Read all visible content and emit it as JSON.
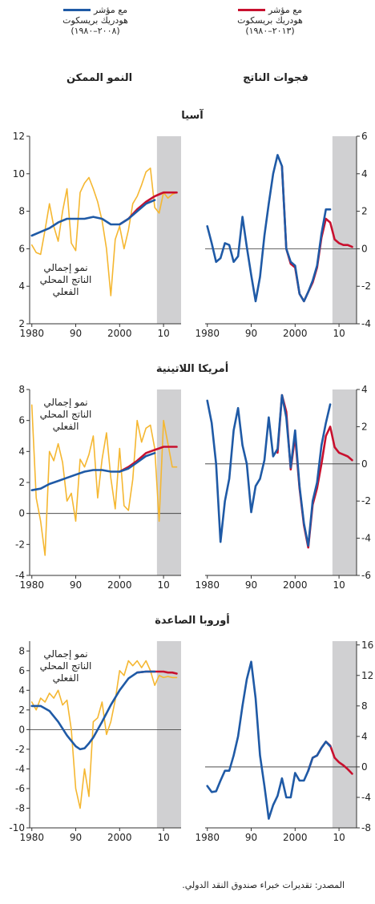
{
  "legend": {
    "left": {
      "line1": "مع مؤشر",
      "line2": "هودريك بريسكوت",
      "line3": "(٢٠٠٨–١٩٨٠)",
      "color": "#1f5aa6"
    },
    "right": {
      "line1": "مع مؤشر",
      "line2": "هودريك بريسكوت",
      "line3": "(٢٠١٣–١٩٨٠)",
      "color": "#c8102e"
    }
  },
  "column_titles": {
    "left": "النمو الممكن",
    "right": "فجوات الناتج"
  },
  "source": "المصدر: تقديرات خبراء صندوق النقد الدولي.",
  "colors": {
    "actual": "#f5b731",
    "hp2008": "#1f5aa6",
    "hp2013": "#c8102e",
    "shade": "#d0d0d2"
  },
  "chart_data": [
    {
      "type": "line",
      "region": "آسيا",
      "panel": "left",
      "x_ticks": [
        "1980",
        "90",
        "2000",
        "10"
      ],
      "y_ticks": [
        2,
        4,
        6,
        8,
        10,
        12
      ],
      "ylim": [
        2,
        12
      ],
      "xlim": [
        1979.5,
        2014
      ],
      "annotation": [
        "نمو إجمالي",
        "الناتج المحلي",
        "الفعلي"
      ],
      "shaded_from": 2008.5,
      "series": [
        {
          "key": "actual",
          "x": [
            1980,
            1981,
            1982,
            1983,
            1984,
            1985,
            1986,
            1987,
            1988,
            1989,
            1990,
            1991,
            1992,
            1993,
            1994,
            1995,
            1996,
            1997,
            1998,
            1999,
            2000,
            2001,
            2002,
            2003,
            2004,
            2005,
            2006,
            2007,
            2008,
            2009,
            2010,
            2011,
            2012,
            2013
          ],
          "values": [
            6.2,
            5.8,
            5.7,
            7.0,
            8.4,
            7.2,
            6.4,
            8.0,
            9.2,
            6.3,
            5.9,
            9.0,
            9.5,
            9.8,
            9.2,
            8.5,
            7.5,
            6.0,
            3.5,
            6.5,
            7.2,
            6.0,
            7.0,
            8.4,
            8.8,
            9.4,
            10.1,
            10.3,
            8.2,
            7.9,
            9.0,
            8.7,
            8.9,
            9.0
          ]
        },
        {
          "key": "hp2008",
          "x": [
            1980,
            1982,
            1984,
            1986,
            1988,
            1990,
            1992,
            1994,
            1996,
            1998,
            2000,
            2002,
            2004,
            2006,
            2008
          ],
          "values": [
            6.7,
            6.9,
            7.1,
            7.4,
            7.6,
            7.6,
            7.6,
            7.7,
            7.6,
            7.3,
            7.3,
            7.6,
            8.0,
            8.4,
            8.6
          ]
        },
        {
          "key": "hp2013",
          "x": [
            2000,
            2002,
            2004,
            2006,
            2008,
            2009,
            2010,
            2011,
            2012,
            2013
          ],
          "values": [
            7.3,
            7.6,
            8.1,
            8.5,
            8.8,
            8.9,
            9.0,
            9.0,
            9.0,
            9.0
          ]
        }
      ]
    },
    {
      "type": "line",
      "region": "آسيا",
      "panel": "right",
      "x_ticks": [
        "1980",
        "90",
        "2000",
        "10"
      ],
      "y_ticks": [
        -4,
        -2,
        0,
        2,
        4,
        6
      ],
      "ylim": [
        -4,
        6
      ],
      "xlim": [
        1979.5,
        2014
      ],
      "zero_line": true,
      "shaded_from": 2008.5,
      "series": [
        {
          "key": "hp2008",
          "x": [
            1980,
            1981,
            1982,
            1983,
            1984,
            1985,
            1986,
            1987,
            1988,
            1989,
            1990,
            1991,
            1992,
            1993,
            1994,
            1995,
            1996,
            1997,
            1998,
            1999,
            2000,
            2001,
            2002,
            2003,
            2004,
            2005,
            2006,
            2007,
            2008
          ],
          "values": [
            1.2,
            0.3,
            -0.7,
            -0.5,
            0.3,
            0.2,
            -0.7,
            -0.4,
            1.7,
            0.1,
            -1.4,
            -2.8,
            -1.5,
            0.7,
            2.4,
            4.0,
            5.0,
            4.4,
            0.0,
            -0.7,
            -0.9,
            -2.4,
            -2.8,
            -2.3,
            -1.7,
            -0.9,
            0.8,
            2.1,
            2.1
          ]
        },
        {
          "key": "hp2013",
          "x": [
            1997,
            1998,
            1999,
            2000,
            2001,
            2002,
            2003,
            2004,
            2005,
            2006,
            2007,
            2008,
            2009,
            2010,
            2011,
            2012,
            2013
          ],
          "values": [
            4.4,
            0.0,
            -0.8,
            -1.0,
            -2.4,
            -2.8,
            -2.3,
            -1.8,
            -1.0,
            0.6,
            1.6,
            1.4,
            0.5,
            0.3,
            0.2,
            0.2,
            0.1
          ]
        }
      ]
    },
    {
      "type": "line",
      "region": "أمريكا اللاتينية",
      "panel": "left",
      "x_ticks": [
        "1980",
        "90",
        "2000",
        "10"
      ],
      "y_ticks": [
        -4,
        -2,
        0,
        2,
        4,
        6,
        8
      ],
      "ylim": [
        -4,
        8
      ],
      "xlim": [
        1979.5,
        2014
      ],
      "zero_line": true,
      "annotation": [
        "نمو إجمالي",
        "الناتج المحلي",
        "الفعلي"
      ],
      "shaded_from": 2008.5,
      "series": [
        {
          "key": "actual",
          "x": [
            1980,
            1981,
            1982,
            1983,
            1984,
            1985,
            1986,
            1987,
            1988,
            1989,
            1990,
            1991,
            1992,
            1993,
            1994,
            1995,
            1996,
            1997,
            1998,
            1999,
            2000,
            2001,
            2002,
            2003,
            2004,
            2005,
            2006,
            2007,
            2008,
            2009,
            2010,
            2011,
            2012,
            2013
          ],
          "values": [
            7.0,
            1.0,
            -0.5,
            -2.7,
            4.0,
            3.4,
            4.5,
            3.3,
            0.8,
            1.3,
            -0.5,
            3.5,
            3.0,
            3.8,
            5.0,
            1.0,
            3.5,
            5.2,
            2.3,
            0.3,
            4.2,
            0.5,
            0.2,
            2.2,
            6.0,
            4.6,
            5.5,
            5.7,
            4.2,
            -0.5,
            6.0,
            4.5,
            3.0,
            3.0
          ]
        },
        {
          "key": "hp2008",
          "x": [
            1980,
            1982,
            1984,
            1986,
            1988,
            1990,
            1992,
            1994,
            1996,
            1998,
            2000,
            2002,
            2004,
            2006,
            2008
          ],
          "values": [
            1.5,
            1.6,
            1.9,
            2.1,
            2.3,
            2.5,
            2.7,
            2.8,
            2.8,
            2.7,
            2.7,
            2.9,
            3.3,
            3.7,
            3.9
          ]
        },
        {
          "key": "hp2013",
          "x": [
            2000,
            2002,
            2004,
            2006,
            2008,
            2009,
            2010,
            2011,
            2012,
            2013
          ],
          "values": [
            2.7,
            3.0,
            3.4,
            3.9,
            4.1,
            4.2,
            4.3,
            4.3,
            4.3,
            4.3
          ]
        }
      ]
    },
    {
      "type": "line",
      "region": "أمريكا اللاتينية",
      "panel": "right",
      "x_ticks": [
        "1980",
        "90",
        "2000",
        "10"
      ],
      "y_ticks": [
        -6,
        -4,
        -2,
        0,
        2,
        4
      ],
      "ylim": [
        -6,
        4
      ],
      "xlim": [
        1979.5,
        2014
      ],
      "zero_line": true,
      "shaded_from": 2008.5,
      "series": [
        {
          "key": "hp2008",
          "x": [
            1980,
            1981,
            1982,
            1983,
            1984,
            1985,
            1986,
            1987,
            1988,
            1989,
            1990,
            1991,
            1992,
            1993,
            1994,
            1995,
            1996,
            1997,
            1998,
            1999,
            2000,
            2001,
            2002,
            2003,
            2004,
            2005,
            2006,
            2007,
            2008
          ],
          "values": [
            3.4,
            2.2,
            0.0,
            -4.2,
            -2.0,
            -0.8,
            1.8,
            3.0,
            1.0,
            0.0,
            -2.6,
            -1.2,
            -0.8,
            0.2,
            2.5,
            0.4,
            0.8,
            3.7,
            2.5,
            -0.2,
            1.8,
            -1.2,
            -3.2,
            -4.4,
            -2.0,
            -1.0,
            1.0,
            2.2,
            3.2
          ]
        },
        {
          "key": "hp2013",
          "x": [
            1996,
            1997,
            1998,
            1999,
            2000,
            2001,
            2002,
            2003,
            2004,
            2005,
            2006,
            2007,
            2008,
            2009,
            2010,
            2011,
            2012,
            2013
          ],
          "values": [
            0.6,
            3.7,
            2.8,
            -0.3,
            1.5,
            -1.3,
            -3.3,
            -4.5,
            -2.2,
            -1.3,
            0.0,
            1.5,
            2.0,
            0.9,
            0.6,
            0.5,
            0.4,
            0.2
          ]
        }
      ]
    },
    {
      "type": "line",
      "region": "أوروبا الصاعدة",
      "panel": "left",
      "x_ticks": [
        "1980",
        "90",
        "2000",
        "10"
      ],
      "y_ticks": [
        -10,
        -8,
        -6,
        -4,
        -2,
        0,
        2,
        4,
        6,
        8
      ],
      "ylim": [
        -10,
        9
      ],
      "xlim": [
        1979.5,
        2014
      ],
      "zero_line": true,
      "annotation": [
        "نمو إجمالي",
        "الناتج المحلي",
        "الفعلي"
      ],
      "shaded_from": 2008.5,
      "series": [
        {
          "key": "actual",
          "x": [
            1980,
            1981,
            1982,
            1983,
            1984,
            1985,
            1986,
            1987,
            1988,
            1989,
            1990,
            1991,
            1992,
            1993,
            1994,
            1995,
            1996,
            1997,
            1998,
            1999,
            2000,
            2001,
            2002,
            2003,
            2004,
            2005,
            2006,
            2007,
            2008,
            2009,
            2010,
            2011,
            2012,
            2013
          ],
          "values": [
            2.8,
            2.0,
            3.2,
            2.8,
            3.7,
            3.2,
            4.0,
            2.5,
            3.0,
            0.0,
            -6.0,
            -8.0,
            -4.0,
            -6.8,
            0.8,
            1.2,
            2.8,
            -0.5,
            0.8,
            3.0,
            6.0,
            5.5,
            7.0,
            6.5,
            7.0,
            6.3,
            7.0,
            6.0,
            4.5,
            5.5,
            5.3,
            5.4,
            5.3,
            5.3
          ]
        },
        {
          "key": "hp2008",
          "x": [
            1980,
            1982,
            1984,
            1986,
            1988,
            1990,
            1991,
            1992,
            1993,
            1994,
            1996,
            1998,
            2000,
            2002,
            2004,
            2006,
            2008
          ],
          "values": [
            2.4,
            2.4,
            1.9,
            0.8,
            -0.6,
            -1.7,
            -2.0,
            -1.9,
            -1.4,
            -0.8,
            0.8,
            2.5,
            4.0,
            5.2,
            5.8,
            5.9,
            5.9
          ]
        },
        {
          "key": "hp2013",
          "x": [
            2004,
            2006,
            2008,
            2009,
            2010,
            2011,
            2012,
            2013
          ],
          "values": [
            5.8,
            5.9,
            5.9,
            5.9,
            5.9,
            5.8,
            5.8,
            5.7
          ]
        }
      ]
    },
    {
      "type": "line",
      "region": "أوروبا الصاعدة",
      "panel": "right",
      "x_ticks": [
        "1980",
        "90",
        "2000",
        "10"
      ],
      "y_ticks": [
        -8,
        -4,
        0,
        4,
        8,
        12,
        16
      ],
      "ylim": [
        -8,
        16.5
      ],
      "xlim": [
        1979.5,
        2014
      ],
      "zero_line": true,
      "shaded_from": 2008.5,
      "series": [
        {
          "key": "hp2008",
          "x": [
            1980,
            1981,
            1982,
            1983,
            1984,
            1985,
            1986,
            1987,
            1988,
            1989,
            1990,
            1991,
            1992,
            1993,
            1994,
            1995,
            1996,
            1997,
            1998,
            1999,
            2000,
            2001,
            2002,
            2003,
            2004,
            2005,
            2006,
            2007,
            2008
          ],
          "values": [
            -2.5,
            -3.3,
            -3.2,
            -1.8,
            -0.5,
            -0.5,
            1.5,
            4.0,
            8.0,
            11.5,
            13.8,
            9.0,
            1.5,
            -2.5,
            -6.8,
            -5.0,
            -3.8,
            -1.5,
            -4.0,
            -4.0,
            -0.8,
            -1.8,
            -1.8,
            -0.5,
            1.2,
            1.5,
            2.5,
            3.3,
            2.7
          ]
        },
        {
          "key": "hp2013",
          "x": [
            2003,
            2004,
            2005,
            2006,
            2007,
            2008,
            2009,
            2010,
            2011,
            2012,
            2013
          ],
          "values": [
            -0.5,
            1.2,
            1.5,
            2.5,
            3.3,
            2.8,
            1.2,
            0.6,
            0.2,
            -0.3,
            -0.9
          ]
        }
      ]
    }
  ],
  "region_titles": [
    "آسيا",
    "أمريكا اللاتينية",
    "أوروبا الصاعدة"
  ]
}
